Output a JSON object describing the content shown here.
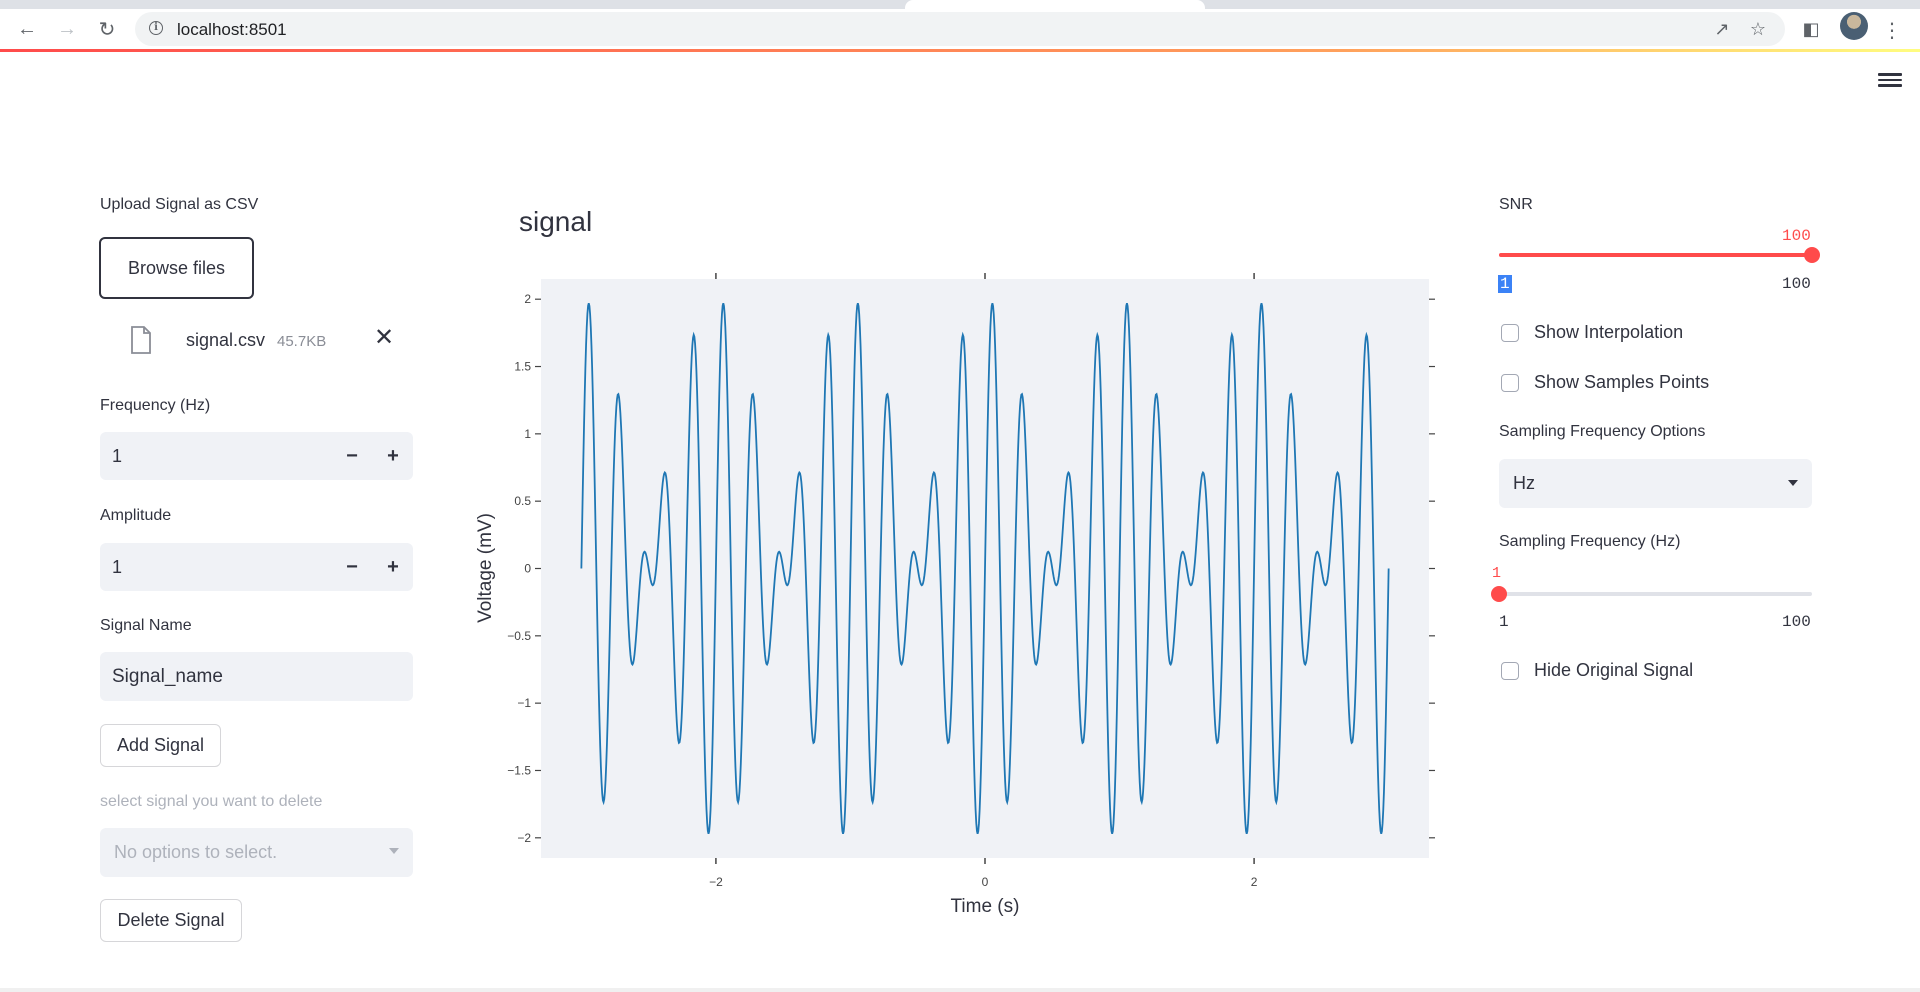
{
  "browser": {
    "url": "localhost:8501"
  },
  "upload": {
    "label": "Upload Signal as CSV",
    "button": "Browse files",
    "file_name": "signal.csv",
    "file_size": "45.7KB"
  },
  "frequency": {
    "label": "Frequency (Hz)",
    "value": "1"
  },
  "amplitude": {
    "label": "Amplitude",
    "value": "1"
  },
  "signal_name": {
    "label": "Signal Name",
    "value": "Signal_name"
  },
  "add_button": "Add Signal",
  "delete_select": {
    "label": "select signal you want to delete",
    "placeholder": "No options to select."
  },
  "delete_button": "Delete Signal",
  "snr": {
    "label": "SNR",
    "value": 100,
    "current_label": "100",
    "min": 1,
    "min_label": "1",
    "max": 100,
    "max_label": "100"
  },
  "show_interpolation": {
    "label": "Show Interpolation",
    "checked": false
  },
  "show_samples": {
    "label": "Show Samples Points",
    "checked": false
  },
  "sampling_options": {
    "label": "Sampling Frequency Options",
    "value": "Hz"
  },
  "sampling_frequency": {
    "label": "Sampling Frequency (Hz)",
    "value": 1,
    "current_label": "1",
    "min": 1,
    "min_label": "1",
    "max": 100,
    "max_label": "100"
  },
  "hide_original": {
    "label": "Hide Original Signal",
    "checked": false
  },
  "colors": {
    "accent": "#ff4b4b",
    "line": "#1f77b4",
    "plot_bg": "#f0f2f6"
  },
  "chart_data": {
    "type": "line",
    "title": "signal",
    "xlabel": "Time (s)",
    "ylabel": "Voltage (mV)",
    "xlim": [
      -3.3,
      3.3
    ],
    "ylim": [
      -2.15,
      2.15
    ],
    "xticks": [
      {
        "value": -2,
        "label": "−2"
      },
      {
        "value": 0,
        "label": "0"
      },
      {
        "value": 2,
        "label": "2"
      }
    ],
    "yticks": [
      {
        "value": 2,
        "label": "2"
      },
      {
        "value": 1.5,
        "label": "1.5"
      },
      {
        "value": 1,
        "label": "1"
      },
      {
        "value": 0.5,
        "label": "0.5"
      },
      {
        "value": 0,
        "label": "0"
      },
      {
        "value": -0.5,
        "label": "−0.5"
      },
      {
        "value": -1,
        "label": "−1"
      },
      {
        "value": -1.5,
        "label": "−1.5"
      },
      {
        "value": -2,
        "label": "−2"
      }
    ],
    "series": [
      {
        "color": "#1f77b4",
        "x_range": [
          -3,
          3
        ],
        "num_points": 1200,
        "components": [
          {
            "amplitude": 1,
            "frequency_hz": 5
          },
          {
            "amplitude": 1,
            "frequency_hz": 4
          }
        ]
      }
    ]
  }
}
